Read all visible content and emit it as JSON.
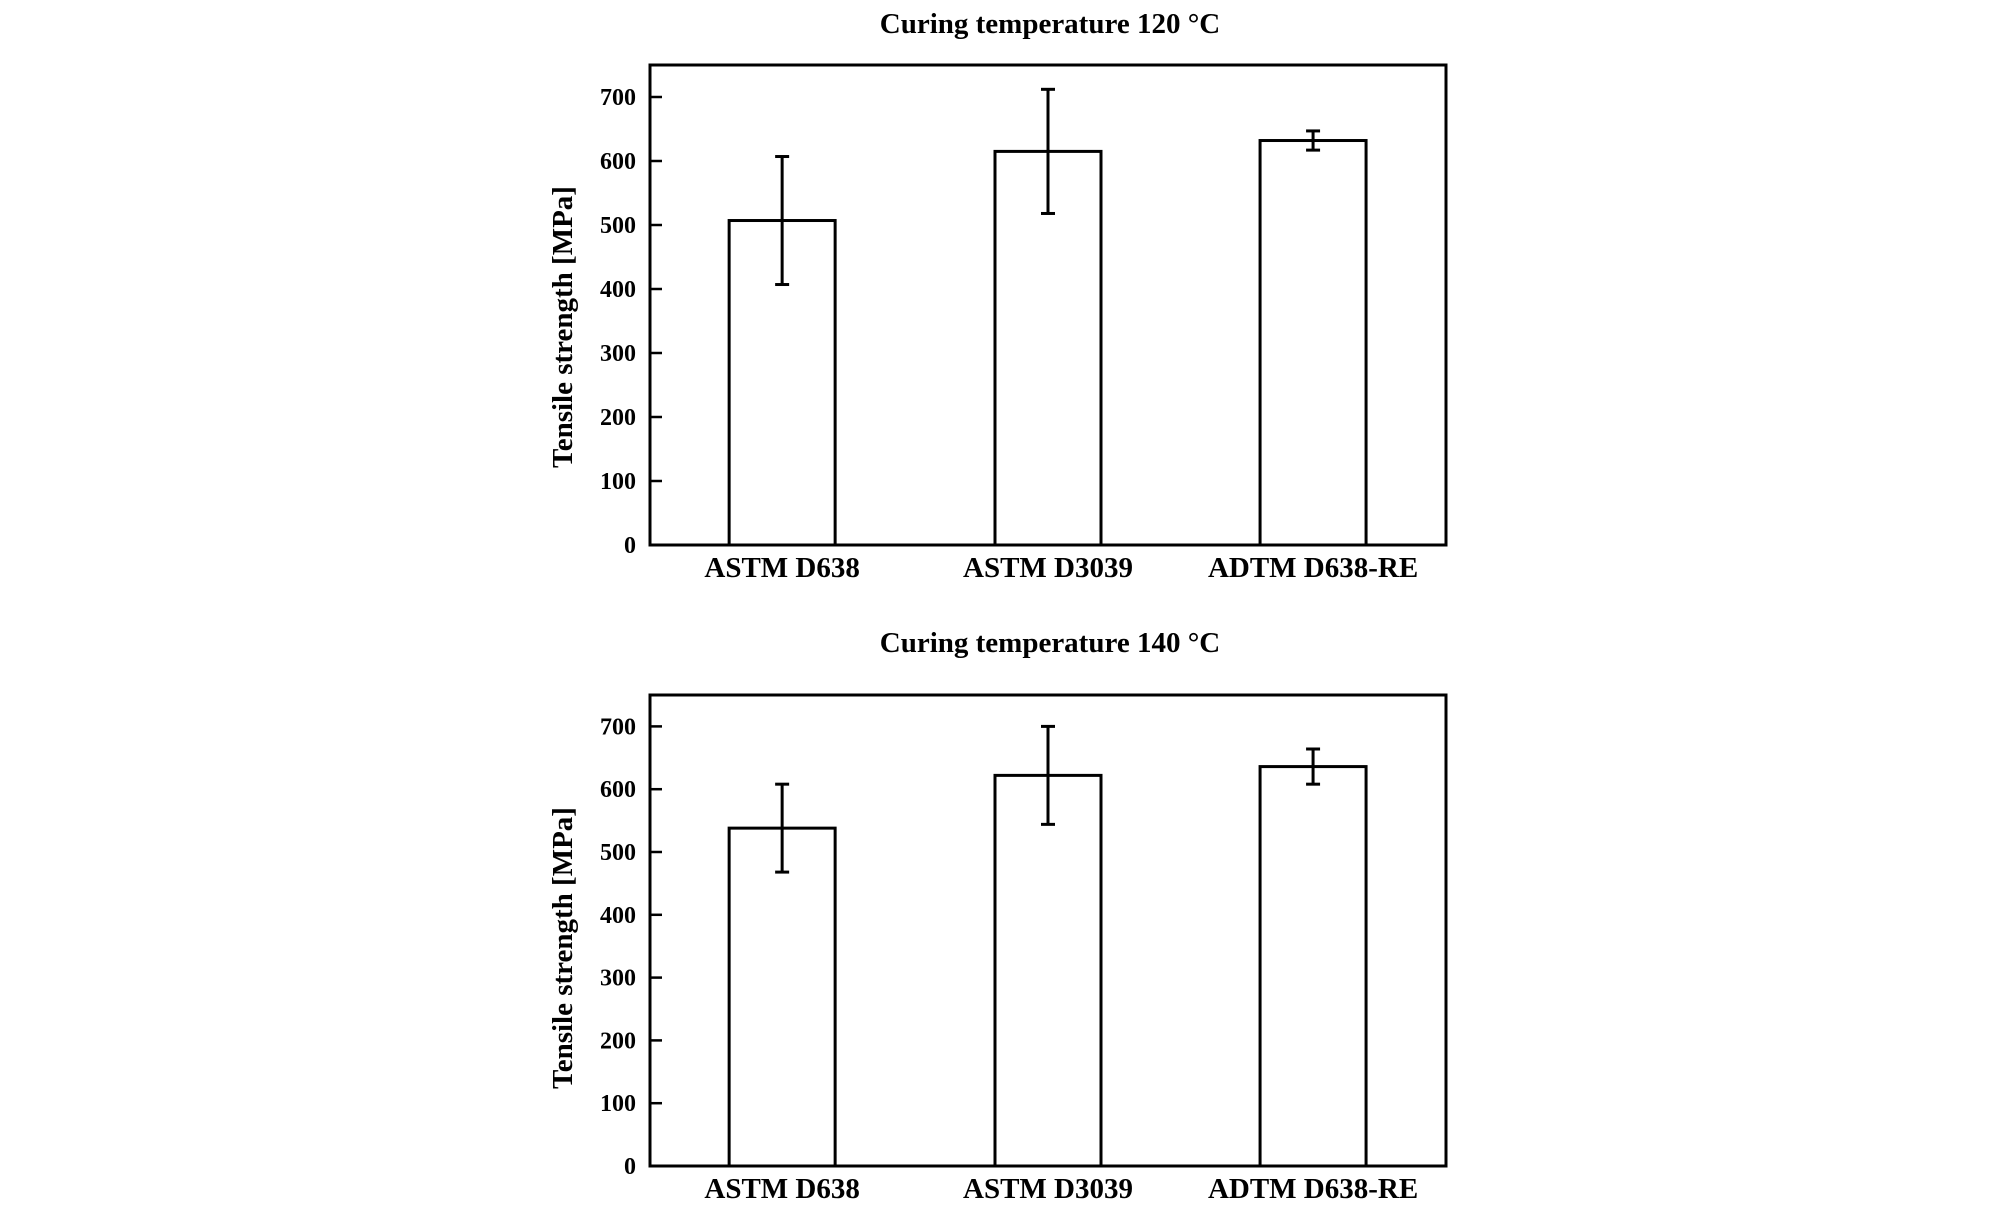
{
  "chart_data": [
    {
      "type": "bar",
      "title": "Curing temperature 120 °C",
      "xlabel": "",
      "ylabel": "Tensile strength [MPa]",
      "ylim": [
        0,
        750
      ],
      "yticks": [
        0,
        100,
        200,
        300,
        400,
        500,
        600,
        700
      ],
      "categories": [
        "ASTM D638",
        "ASTM D3039",
        "ADTM D638-RE"
      ],
      "values": [
        507,
        615,
        632
      ],
      "errors": [
        100,
        97,
        15
      ],
      "grid": false,
      "legend": false
    },
    {
      "type": "bar",
      "title": "Curing temperature 140 °C",
      "xlabel": "",
      "ylabel": "Tensile strength [MPa]",
      "ylim": [
        0,
        750
      ],
      "yticks": [
        0,
        100,
        200,
        300,
        400,
        500,
        600,
        700
      ],
      "categories": [
        "ASTM D638",
        "ASTM D3039",
        "ADTM D638-RE"
      ],
      "values": [
        538,
        622,
        636
      ],
      "errors": [
        70,
        78,
        28
      ],
      "grid": false,
      "legend": false
    }
  ]
}
